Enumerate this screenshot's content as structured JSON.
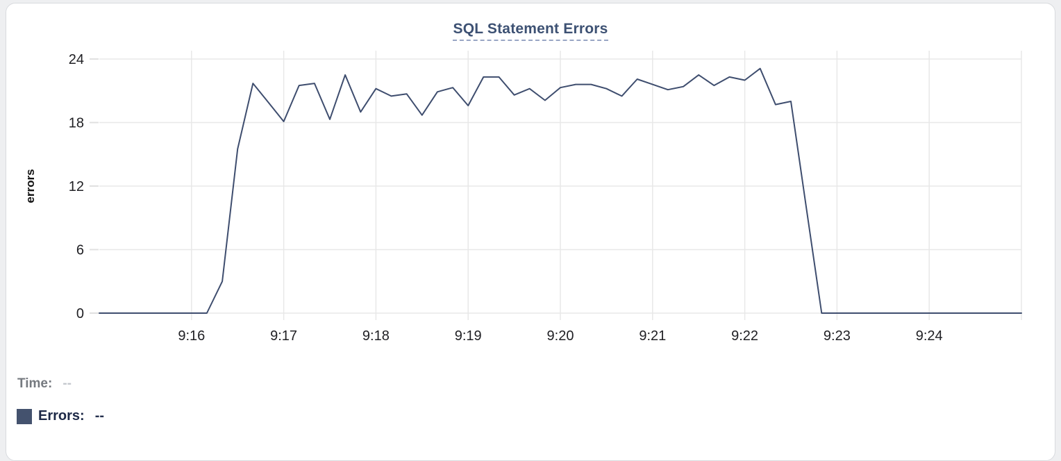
{
  "chart": {
    "title": "SQL Statement Errors"
  },
  "tooltip": {
    "time_label": "Time:",
    "time_value": "--",
    "errors_label": "Errors:",
    "errors_value": "--"
  },
  "colors": {
    "line": "#3e4d6e",
    "title": "#3d5173",
    "swatch": "#44526e",
    "grid": "#e8e8e8",
    "axis_tick": "#e0e0e0",
    "tick_text": "#202024",
    "time_label": "#75797f",
    "time_value": "#c4c8ce",
    "errors_label": "#1d2947",
    "errors_value": "#25314e"
  },
  "chart_data": {
    "type": "line",
    "title": "SQL Statement Errors",
    "xlabel": "",
    "ylabel": "errors",
    "ylim": [
      0,
      24
    ],
    "y_ticks": [
      0,
      6,
      12,
      18,
      24
    ],
    "x_tick_labels": [
      "9:16",
      "9:17",
      "9:18",
      "9:19",
      "9:20",
      "9:21",
      "9:22",
      "9:23",
      "9:24"
    ],
    "x_range": [
      "9:15:00",
      "9:25:00"
    ],
    "grid": true,
    "legend_position": "bottom-left",
    "series": [
      {
        "name": "Errors",
        "color": "#3e4d6e",
        "start_time": "9:15:00",
        "interval_seconds": 10,
        "values": [
          0,
          0,
          0,
          0,
          0,
          0,
          0,
          0,
          3,
          15.5,
          21.7,
          19.9,
          18.1,
          21.5,
          21.7,
          18.3,
          22.5,
          19,
          21.2,
          20.5,
          20.7,
          18.7,
          20.9,
          21.3,
          19.6,
          22.3,
          22.3,
          20.6,
          21.2,
          20.1,
          21.3,
          21.6,
          21.6,
          21.2,
          20.5,
          22.1,
          21.6,
          21.1,
          21.4,
          22.5,
          21.5,
          22.3,
          22,
          23.1,
          19.7,
          20,
          10,
          0,
          0,
          0,
          0,
          0,
          0,
          0,
          0,
          0,
          0,
          0,
          0,
          0,
          0
        ]
      }
    ]
  }
}
